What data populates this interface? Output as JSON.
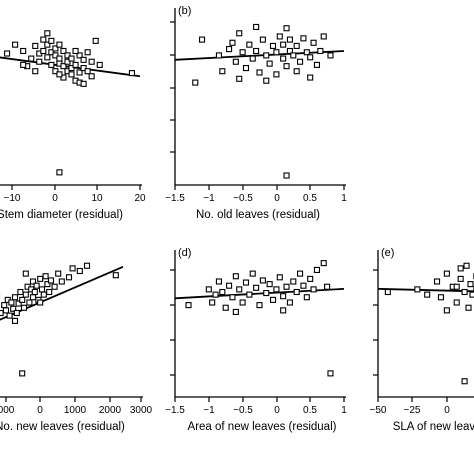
{
  "chart_data": [
    {
      "type": "scatter",
      "panel_label": "",
      "xlabel": "Stem diameter (residual)",
      "x_ticks": [
        "−10",
        "0",
        "10",
        "20"
      ],
      "xlim": [
        -15,
        20
      ],
      "ylim": [
        -1.5,
        1.3
      ],
      "regression": {
        "x": [
          -15,
          20
        ],
        "y": [
          0.52,
          0.22
        ]
      },
      "points": [
        {
          "x": -13,
          "y": 0.58
        },
        {
          "x": -11,
          "y": 0.72
        },
        {
          "x": -9,
          "y": 0.62
        },
        {
          "x": -8,
          "y": 0.38
        },
        {
          "x": -7,
          "y": 0.5
        },
        {
          "x": -6,
          "y": 0.7
        },
        {
          "x": -5,
          "y": 0.58
        },
        {
          "x": -5,
          "y": 0.45
        },
        {
          "x": -4,
          "y": 0.8
        },
        {
          "x": -4,
          "y": 0.62
        },
        {
          "x": -3,
          "y": 0.9
        },
        {
          "x": -3,
          "y": 0.72
        },
        {
          "x": -3,
          "y": 0.52
        },
        {
          "x": -2,
          "y": 0.78
        },
        {
          "x": -2,
          "y": 0.6
        },
        {
          "x": -2,
          "y": 0.4
        },
        {
          "x": -1,
          "y": 0.66
        },
        {
          "x": -1,
          "y": 0.55
        },
        {
          "x": -1,
          "y": 0.3
        },
        {
          "x": 0,
          "y": 0.72
        },
        {
          "x": 0,
          "y": 0.5
        },
        {
          "x": 0,
          "y": 0.42
        },
        {
          "x": 1,
          "y": 0.62
        },
        {
          "x": 1,
          "y": 0.38
        },
        {
          "x": 1,
          "y": 0.2
        },
        {
          "x": 2,
          "y": 0.55
        },
        {
          "x": 2,
          "y": 0.45
        },
        {
          "x": 2,
          "y": 0.3
        },
        {
          "x": 3,
          "y": 0.5
        },
        {
          "x": 3,
          "y": 0.35
        },
        {
          "x": 3,
          "y": 0.25
        },
        {
          "x": 4,
          "y": 0.4
        },
        {
          "x": 4,
          "y": 0.15
        },
        {
          "x": 5,
          "y": 0.55
        },
        {
          "x": 5,
          "y": 0.28
        },
        {
          "x": 5,
          "y": 0.12
        },
        {
          "x": 6,
          "y": 0.35
        },
        {
          "x": 6,
          "y": 0.48
        },
        {
          "x": 6,
          "y": 0.1
        },
        {
          "x": 7,
          "y": 0.6
        },
        {
          "x": 7,
          "y": 0.3
        },
        {
          "x": 8,
          "y": 0.45
        },
        {
          "x": 8,
          "y": 0.22
        },
        {
          "x": 9,
          "y": 0.78
        },
        {
          "x": 10,
          "y": 0.4
        },
        {
          "x": -6,
          "y": 0.3
        },
        {
          "x": -9,
          "y": 0.4
        },
        {
          "x": 0,
          "y": 0.25
        },
        {
          "x": 4,
          "y": 0.62
        },
        {
          "x": 18,
          "y": 0.27
        },
        {
          "x": 0,
          "y": -1.3
        }
      ]
    },
    {
      "type": "scatter",
      "panel_label": "(b)",
      "xlabel": "No. old leaves (residual)",
      "x_ticks": [
        "−1.5",
        "−1",
        "−0.5",
        "0",
        "0.5",
        "1"
      ],
      "xlim": [
        -1.5,
        1
      ],
      "ylim": [
        -1.5,
        1.3
      ],
      "regression": {
        "x": [
          -1.5,
          1
        ],
        "y": [
          0.48,
          0.62
        ]
      },
      "points": [
        {
          "x": -1.2,
          "y": 0.12
        },
        {
          "x": -1.1,
          "y": 0.8
        },
        {
          "x": -0.85,
          "y": 0.55
        },
        {
          "x": -0.8,
          "y": 0.3
        },
        {
          "x": -0.7,
          "y": 0.65
        },
        {
          "x": -0.65,
          "y": 0.75
        },
        {
          "x": -0.6,
          "y": 0.45
        },
        {
          "x": -0.55,
          "y": 0.9
        },
        {
          "x": -0.5,
          "y": 0.6
        },
        {
          "x": -0.45,
          "y": 0.35
        },
        {
          "x": -0.4,
          "y": 0.72
        },
        {
          "x": -0.35,
          "y": 0.5
        },
        {
          "x": -0.3,
          "y": 1.0
        },
        {
          "x": -0.3,
          "y": 0.62
        },
        {
          "x": -0.25,
          "y": 0.28
        },
        {
          "x": -0.2,
          "y": 0.8
        },
        {
          "x": -0.15,
          "y": 0.55
        },
        {
          "x": -0.1,
          "y": 0.42
        },
        {
          "x": -0.05,
          "y": 0.7
        },
        {
          "x": 0,
          "y": 0.6
        },
        {
          "x": 0,
          "y": 0.25
        },
        {
          "x": 0.05,
          "y": 0.85
        },
        {
          "x": 0.1,
          "y": 0.5
        },
        {
          "x": 0.1,
          "y": 0.72
        },
        {
          "x": 0.15,
          "y": 0.38
        },
        {
          "x": 0.2,
          "y": 0.62
        },
        {
          "x": 0.2,
          "y": 0.8
        },
        {
          "x": 0.25,
          "y": 0.55
        },
        {
          "x": 0.3,
          "y": 0.3
        },
        {
          "x": 0.3,
          "y": 0.7
        },
        {
          "x": 0.35,
          "y": 0.45
        },
        {
          "x": 0.4,
          "y": 0.82
        },
        {
          "x": 0.45,
          "y": 0.6
        },
        {
          "x": 0.5,
          "y": 0.52
        },
        {
          "x": 0.5,
          "y": 0.2
        },
        {
          "x": 0.55,
          "y": 0.75
        },
        {
          "x": 0.6,
          "y": 0.4
        },
        {
          "x": 0.65,
          "y": 0.62
        },
        {
          "x": 0.7,
          "y": 0.85
        },
        {
          "x": 0.8,
          "y": 0.55
        },
        {
          "x": -0.55,
          "y": 0.18
        },
        {
          "x": 0.15,
          "y": 0.98
        },
        {
          "x": -0.15,
          "y": 0.15
        },
        {
          "x": 0.15,
          "y": -1.35
        }
      ]
    },
    {
      "type": "scatter",
      "panel_label": "",
      "xlabel": "No. new leaves (residual)",
      "x_ticks": [
        "000",
        "0",
        "1000",
        "2000",
        "3000"
      ],
      "xlim": [
        -1000,
        3000
      ],
      "ylim": [
        -1.5,
        1.3
      ],
      "regression": {
        "x": [
          -1000,
          2500
        ],
        "y": [
          -0.05,
          0.98
        ]
      },
      "points": [
        {
          "x": -900,
          "y": 0.1
        },
        {
          "x": -800,
          "y": 0.25
        },
        {
          "x": -750,
          "y": 0.15
        },
        {
          "x": -700,
          "y": 0.35
        },
        {
          "x": -650,
          "y": 0.05
        },
        {
          "x": -600,
          "y": 0.3
        },
        {
          "x": -550,
          "y": 0.18
        },
        {
          "x": -500,
          "y": 0.4
        },
        {
          "x": -450,
          "y": 0.1
        },
        {
          "x": -400,
          "y": 0.28
        },
        {
          "x": -350,
          "y": 0.5
        },
        {
          "x": -300,
          "y": 0.35
        },
        {
          "x": -250,
          "y": 0.2
        },
        {
          "x": -200,
          "y": 0.45
        },
        {
          "x": -150,
          "y": 0.6
        },
        {
          "x": -100,
          "y": 0.3
        },
        {
          "x": -50,
          "y": 0.55
        },
        {
          "x": 0,
          "y": 0.4
        },
        {
          "x": 0,
          "y": 0.7
        },
        {
          "x": 50,
          "y": 0.5
        },
        {
          "x": 100,
          "y": 0.62
        },
        {
          "x": 150,
          "y": 0.35
        },
        {
          "x": 200,
          "y": 0.75
        },
        {
          "x": 250,
          "y": 0.55
        },
        {
          "x": 300,
          "y": 0.45
        },
        {
          "x": 350,
          "y": 0.8
        },
        {
          "x": 400,
          "y": 0.65
        },
        {
          "x": 450,
          "y": 0.5
        },
        {
          "x": 500,
          "y": 0.72
        },
        {
          "x": 600,
          "y": 0.6
        },
        {
          "x": 700,
          "y": 0.85
        },
        {
          "x": 800,
          "y": 0.7
        },
        {
          "x": 1000,
          "y": 0.78
        },
        {
          "x": 1100,
          "y": 0.95
        },
        {
          "x": 1300,
          "y": 0.9
        },
        {
          "x": 1500,
          "y": 1.0
        },
        {
          "x": 2300,
          "y": 0.82
        },
        {
          "x": -200,
          "y": 0.85
        },
        {
          "x": 200,
          "y": 0.3
        },
        {
          "x": -500,
          "y": -0.05
        },
        {
          "x": -1000,
          "y": 0.42
        },
        {
          "x": -300,
          "y": -1.05
        }
      ]
    },
    {
      "type": "scatter",
      "panel_label": "(d)",
      "xlabel": "Area of new leaves (residual)",
      "x_ticks": [
        "−1.5",
        "−1",
        "−0.5",
        "0",
        "0.5",
        "1"
      ],
      "xlim": [
        -1.5,
        1
      ],
      "ylim": [
        -1.5,
        1.3
      ],
      "regression": {
        "x": [
          -1.5,
          1
        ],
        "y": [
          0.38,
          0.56
        ]
      },
      "points": [
        {
          "x": -1.3,
          "y": 0.25
        },
        {
          "x": -1.0,
          "y": 0.55
        },
        {
          "x": -0.95,
          "y": 0.3
        },
        {
          "x": -0.9,
          "y": 0.45
        },
        {
          "x": -0.85,
          "y": 0.7
        },
        {
          "x": -0.8,
          "y": 0.5
        },
        {
          "x": -0.75,
          "y": 0.2
        },
        {
          "x": -0.7,
          "y": 0.62
        },
        {
          "x": -0.65,
          "y": 0.4
        },
        {
          "x": -0.6,
          "y": 0.8
        },
        {
          "x": -0.55,
          "y": 0.55
        },
        {
          "x": -0.5,
          "y": 0.3
        },
        {
          "x": -0.45,
          "y": 0.68
        },
        {
          "x": -0.4,
          "y": 0.45
        },
        {
          "x": -0.35,
          "y": 0.85
        },
        {
          "x": -0.3,
          "y": 0.58
        },
        {
          "x": -0.25,
          "y": 0.25
        },
        {
          "x": -0.2,
          "y": 0.72
        },
        {
          "x": -0.15,
          "y": 0.48
        },
        {
          "x": -0.1,
          "y": 0.65
        },
        {
          "x": -0.05,
          "y": 0.35
        },
        {
          "x": 0,
          "y": 0.55
        },
        {
          "x": 0.05,
          "y": 0.78
        },
        {
          "x": 0.1,
          "y": 0.42
        },
        {
          "x": 0.15,
          "y": 0.6
        },
        {
          "x": 0.2,
          "y": 0.3
        },
        {
          "x": 0.25,
          "y": 0.7
        },
        {
          "x": 0.3,
          "y": 0.5
        },
        {
          "x": 0.35,
          "y": 0.85
        },
        {
          "x": 0.4,
          "y": 0.62
        },
        {
          "x": 0.45,
          "y": 0.4
        },
        {
          "x": 0.5,
          "y": 0.75
        },
        {
          "x": 0.55,
          "y": 0.55
        },
        {
          "x": 0.6,
          "y": 0.92
        },
        {
          "x": 0.7,
          "y": 1.05
        },
        {
          "x": 0.75,
          "y": 0.6
        },
        {
          "x": -0.6,
          "y": 0.12
        },
        {
          "x": 0.1,
          "y": 0.15
        },
        {
          "x": 0.8,
          "y": -1.05
        }
      ]
    },
    {
      "type": "scatter",
      "panel_label": "(e)",
      "xlabel": "SLA of new leaves",
      "x_ticks": [
        "−50",
        "−25",
        "0"
      ],
      "xlim": [
        -50,
        12
      ],
      "ylim": [
        -1.5,
        1.3
      ],
      "regression": {
        "x": [
          -50,
          12
        ],
        "y": [
          0.56,
          0.5
        ]
      },
      "points": [
        {
          "x": -45,
          "y": 0.5
        },
        {
          "x": -30,
          "y": 0.55
        },
        {
          "x": -25,
          "y": 0.45
        },
        {
          "x": -20,
          "y": 0.7
        },
        {
          "x": -18,
          "y": 0.4
        },
        {
          "x": -15,
          "y": 0.85
        },
        {
          "x": -12,
          "y": 0.6
        },
        {
          "x": -10,
          "y": 0.3
        },
        {
          "x": -8,
          "y": 0.75
        },
        {
          "x": -6,
          "y": 0.5
        },
        {
          "x": -5,
          "y": 1.0
        },
        {
          "x": -4,
          "y": 0.2
        },
        {
          "x": -3,
          "y": 0.65
        },
        {
          "x": -2,
          "y": 0.45
        },
        {
          "x": 0,
          "y": 0.8
        },
        {
          "x": 0,
          "y": 0.55
        },
        {
          "x": 1,
          "y": 0.35
        },
        {
          "x": 2,
          "y": 0.7
        },
        {
          "x": 3,
          "y": 0.5
        },
        {
          "x": 4,
          "y": 0.25
        },
        {
          "x": 5,
          "y": 0.6
        },
        {
          "x": 6,
          "y": 0.4
        },
        {
          "x": 7,
          "y": 0.85
        },
        {
          "x": 8,
          "y": 0.55
        },
        {
          "x": 9,
          "y": 0.3
        },
        {
          "x": -15,
          "y": 0.15
        },
        {
          "x": -8,
          "y": 0.95
        },
        {
          "x": 2,
          "y": 0.9
        },
        {
          "x": -10,
          "y": 0.6
        },
        {
          "x": -6,
          "y": -1.2
        }
      ]
    }
  ]
}
